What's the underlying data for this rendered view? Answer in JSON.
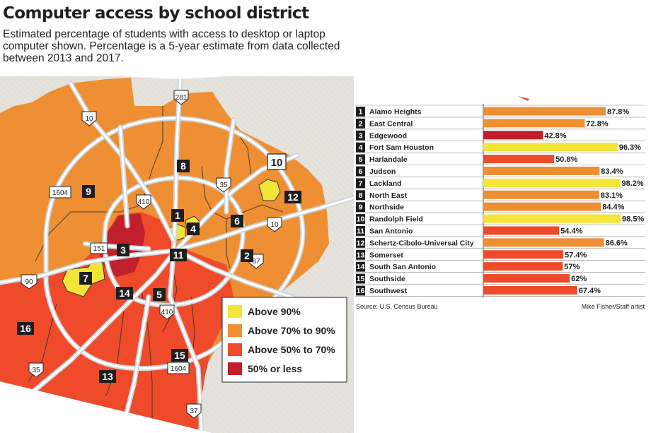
{
  "title": "Computer access by school district",
  "subtitle": "Estimated percentage of students with access to desktop or laptop computer shown. Percentage is a 5-year estimate from data collected between 2013 and 2017.",
  "colors": {
    "above_90": "#f2e537",
    "above_70_to_90": "#ee8f33",
    "above_50_to_70": "#ef4b2b",
    "50_or_less": "#c21f2d",
    "outside": "#e5e3dc",
    "road": "#cfd5db"
  },
  "map": {
    "legend": [
      {
        "label": "Above 90%",
        "color": "#f2e537"
      },
      {
        "label": "Above 70% to 90%",
        "color": "#ee8f33"
      },
      {
        "label": "Above 50% to 70%",
        "color": "#ef4b2b"
      },
      {
        "label": "50% or less",
        "color": "#c21f2d"
      }
    ],
    "highway_labels": [
      "281",
      "10",
      "1604",
      "410",
      "35",
      "10",
      "151",
      "90",
      "87",
      "410",
      "35",
      "1604",
      "37"
    ],
    "district_numbers": [
      "1",
      "2",
      "3",
      "4",
      "5",
      "6",
      "7",
      "8",
      "9",
      "10",
      "11",
      "12",
      "13",
      "14",
      "15",
      "16"
    ]
  },
  "chart_data": {
    "type": "bar",
    "orientation": "horizontal",
    "xlim": [
      0,
      100
    ],
    "categories": [
      "Alamo Heights",
      "East Central",
      "Edgewood",
      "Fort Sam Houston",
      "Harlandale",
      "Judson",
      "Lackland",
      "North East",
      "Northside",
      "Randolph Field",
      "San Antonio",
      "Schertz-Cibolo-Universal City",
      "Somerset",
      "South San Antonio",
      "Southside",
      "Southwest"
    ],
    "numbers": [
      "1",
      "2",
      "3",
      "4",
      "5",
      "6",
      "7",
      "8",
      "9",
      "10",
      "11",
      "12",
      "13",
      "14",
      "15",
      "16"
    ],
    "values": [
      87.8,
      72.8,
      42.8,
      96.3,
      50.8,
      83.4,
      98.2,
      83.1,
      84.4,
      98.5,
      54.4,
      86.6,
      57.4,
      57,
      62,
      67.4
    ],
    "value_labels": [
      "87.8%",
      "72.8%",
      "42.8%",
      "96.3%",
      "50.8%",
      "83.4%",
      "98.2%",
      "83.1%",
      "84.4%",
      "98.5%",
      "54.4%",
      "86.6%",
      "57.4%",
      "57%",
      "62%",
      "67.4%"
    ],
    "source": "Source: U.S. Census Bureau",
    "credit": "Mike Fisher/Staff artist"
  }
}
